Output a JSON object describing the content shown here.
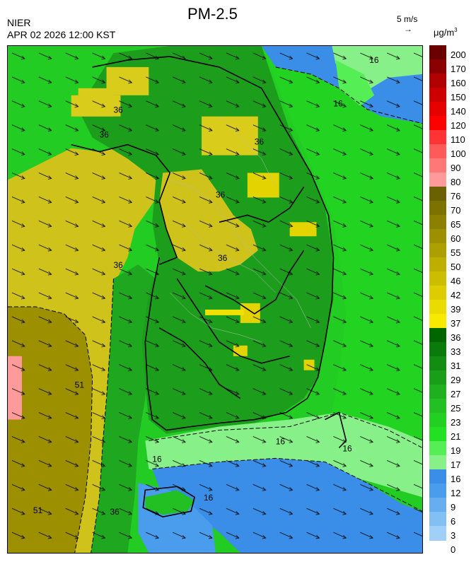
{
  "header": {
    "org": "NIER",
    "timestamp": "APR 02 2026 12:00 KST",
    "title": "PM-2.5",
    "wind_scale": "5 m/s",
    "wind_arrow": "→",
    "unit": "μg/m",
    "unit_sup": "3"
  },
  "legend": {
    "labels": [
      "200",
      "170",
      "160",
      "150",
      "140",
      "120",
      "110",
      "100",
      "90",
      "80",
      "76",
      "70",
      "65",
      "60",
      "55",
      "50",
      "46",
      "42",
      "39",
      "37",
      "36",
      "33",
      "31",
      "29",
      "27",
      "25",
      "23",
      "21",
      "19",
      "17",
      "16",
      "12",
      "9",
      "6",
      "3",
      "0"
    ],
    "colors": [
      "#6a0000",
      "#8b0000",
      "#b00000",
      "#cc0000",
      "#e60000",
      "#ff0000",
      "#ff3333",
      "#ff5a5a",
      "#ff7878",
      "#ff9a9a",
      "#6b6100",
      "#7d7100",
      "#8d8000",
      "#9c8f00",
      "#ad9f00",
      "#bdae00",
      "#ccbd00",
      "#dccc00",
      "#eadb00",
      "#f7ea00",
      "#006600",
      "#0a7a0a",
      "#128c12",
      "#199e19",
      "#1fb01f",
      "#22c022",
      "#22d022",
      "#22e022",
      "#55ee55",
      "#88f088",
      "#3a8ee8",
      "#4a9cec",
      "#66aef0",
      "#82c0f4",
      "#a0d0f8"
    ]
  },
  "map_labels": [
    {
      "text": "16"
    },
    {
      "text": "16"
    },
    {
      "text": "36"
    },
    {
      "text": "36"
    },
    {
      "text": "36"
    },
    {
      "text": "36"
    },
    {
      "text": "36"
    },
    {
      "text": "36"
    },
    {
      "text": "51"
    },
    {
      "text": "51"
    },
    {
      "text": "16"
    },
    {
      "text": "16"
    },
    {
      "text": "16"
    },
    {
      "text": "16"
    },
    {
      "text": "36"
    }
  ]
}
